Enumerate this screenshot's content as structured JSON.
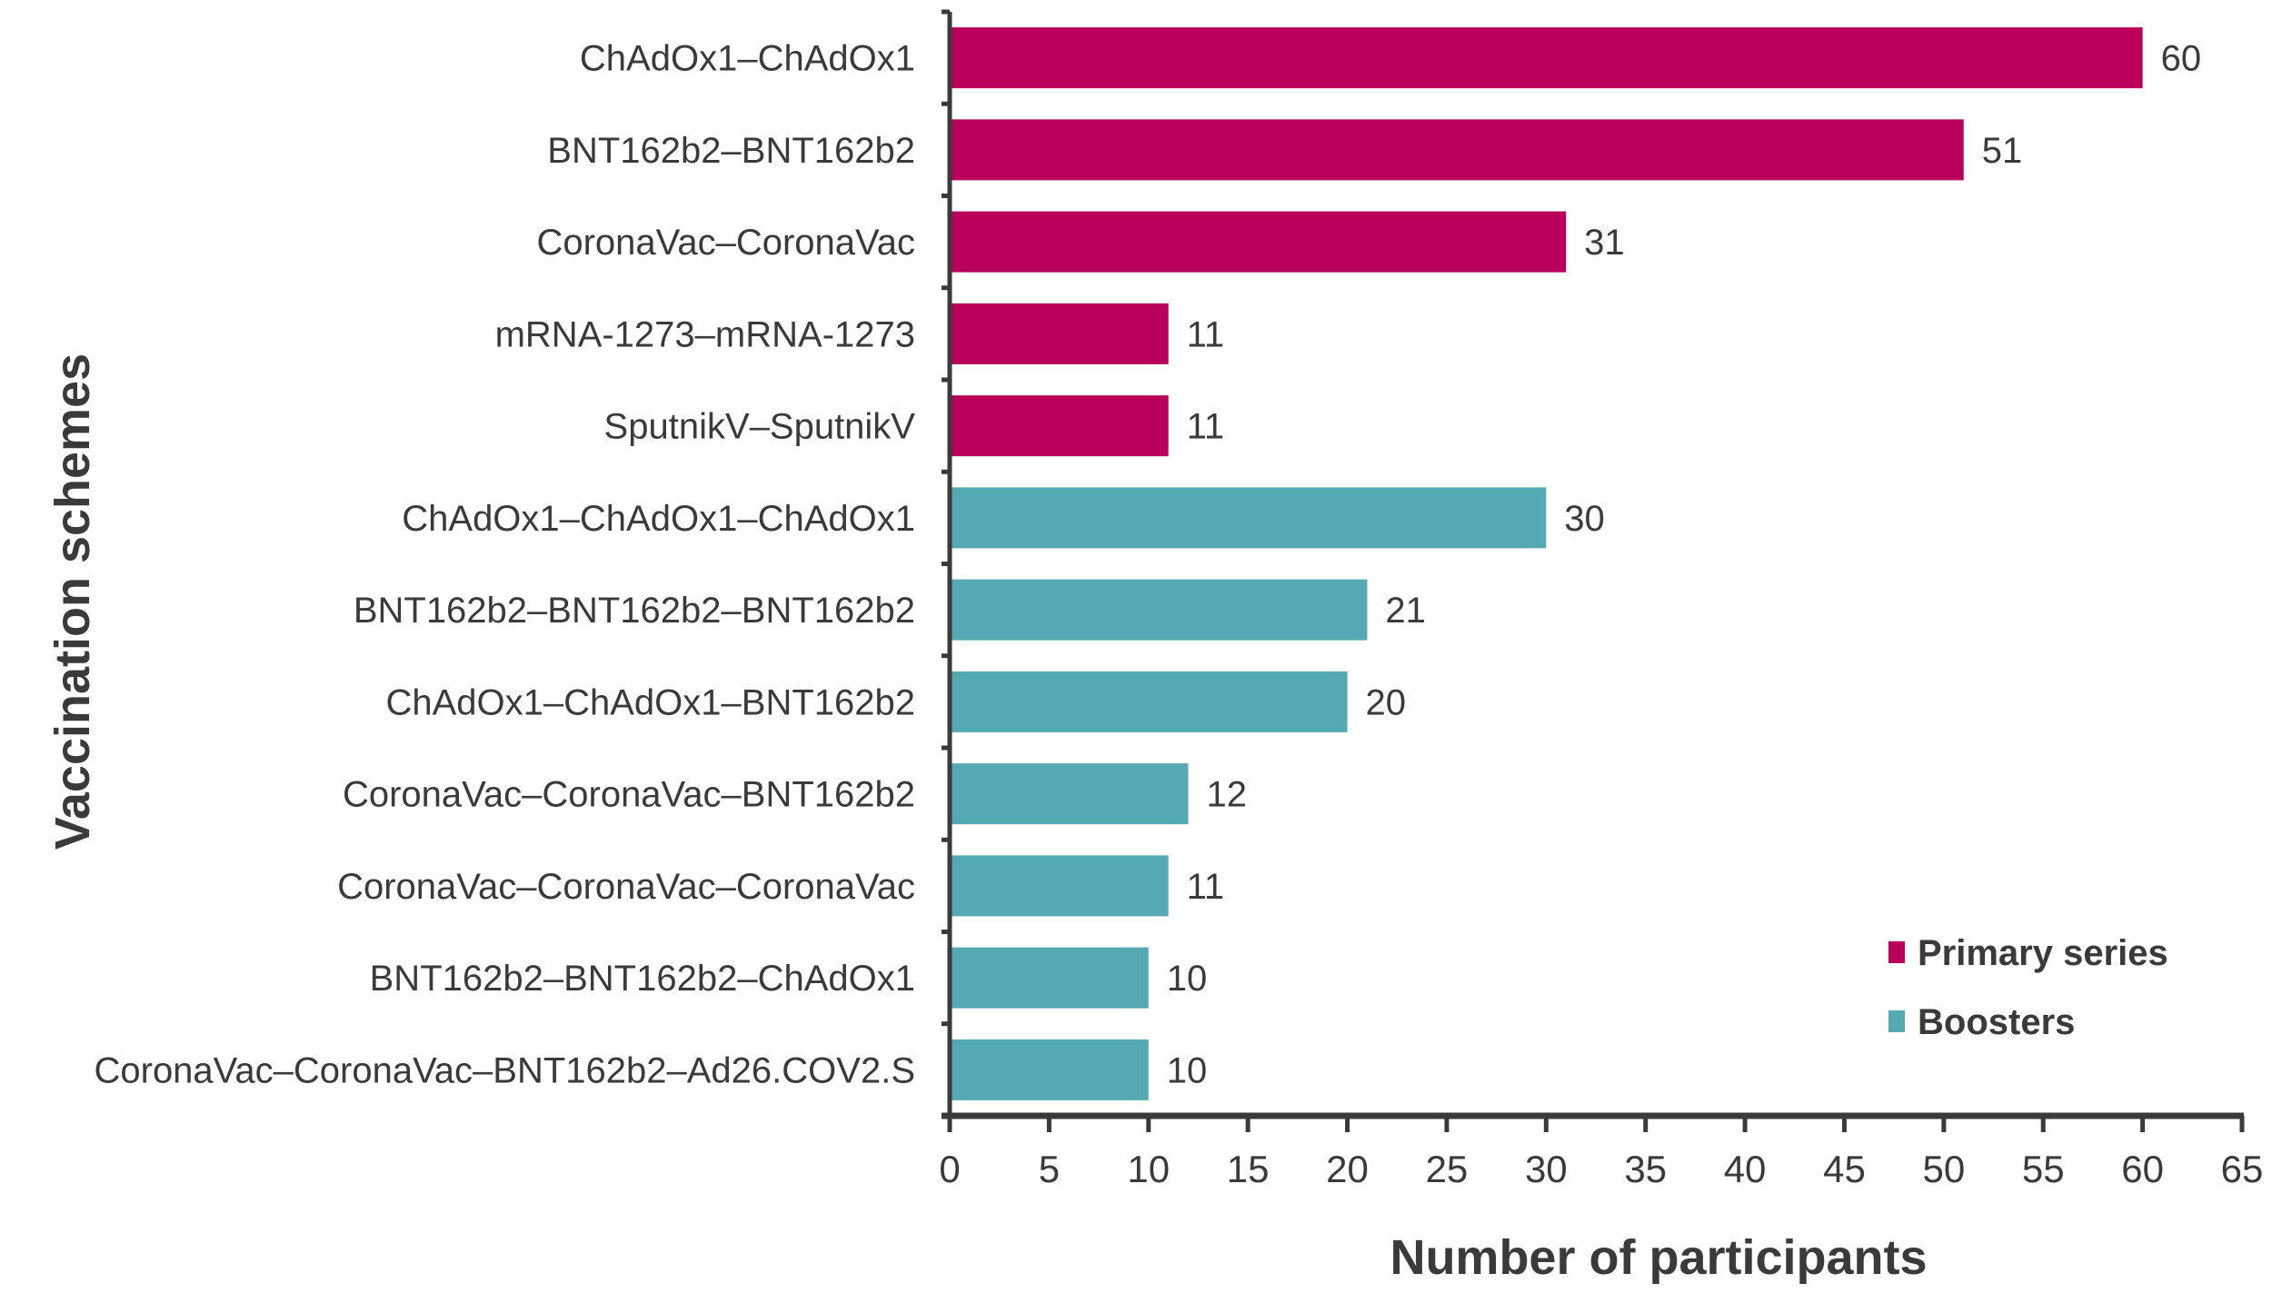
{
  "chart_data": {
    "type": "bar",
    "orientation": "horizontal",
    "xlabel": "Number of participants",
    "ylabel": "Vaccination schemes",
    "xlim": [
      0,
      65
    ],
    "xticks": [
      0,
      5,
      10,
      15,
      20,
      25,
      30,
      35,
      40,
      45,
      50,
      55,
      60,
      65
    ],
    "grid": false,
    "legend_placement": "bottom-right",
    "categories": [
      "ChAdOx1–ChAdOx1",
      "BNT162b2–BNT162b2",
      "CoronaVac–CoronaVac",
      "mRNA-1273–mRNA-1273",
      "SputnikV–SputnikV",
      "ChAdOx1–ChAdOx1–ChAdOx1",
      "BNT162b2–BNT162b2–BNT162b2",
      "ChAdOx1–ChAdOx1–BNT162b2",
      "CoronaVac–CoronaVac–BNT162b2",
      "CoronaVac–CoronaVac–CoronaVac",
      "BNT162b2–BNT162b2–ChAdOx1",
      "CoronaVac–CoronaVac–BNT162b2–Ad26.COV2.S"
    ],
    "values": [
      60,
      51,
      31,
      11,
      11,
      30,
      21,
      20,
      12,
      11,
      10,
      10
    ],
    "groups": [
      "Primary series",
      "Primary series",
      "Primary series",
      "Primary series",
      "Primary series",
      "Boosters",
      "Boosters",
      "Boosters",
      "Boosters",
      "Boosters",
      "Boosters",
      "Boosters"
    ],
    "legend": [
      {
        "name": "Primary series",
        "color": "#B8005A"
      },
      {
        "name": "Boosters",
        "color": "#55A9B2"
      }
    ]
  }
}
